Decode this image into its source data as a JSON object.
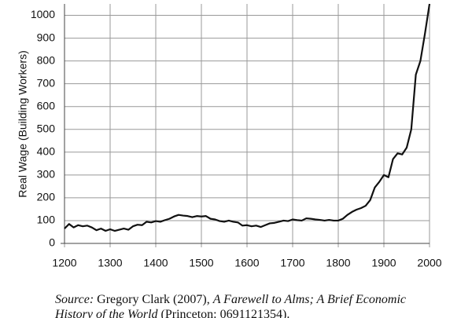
{
  "chart_data": {
    "type": "line",
    "y_label": "Real Wage (Building Workers)",
    "x": [
      1200,
      1210,
      1220,
      1230,
      1240,
      1250,
      1260,
      1270,
      1280,
      1290,
      1300,
      1310,
      1320,
      1330,
      1340,
      1350,
      1360,
      1370,
      1380,
      1390,
      1400,
      1410,
      1420,
      1430,
      1440,
      1450,
      1460,
      1470,
      1480,
      1490,
      1500,
      1510,
      1520,
      1530,
      1540,
      1550,
      1560,
      1570,
      1580,
      1590,
      1600,
      1610,
      1620,
      1630,
      1640,
      1650,
      1660,
      1670,
      1680,
      1690,
      1700,
      1710,
      1720,
      1730,
      1740,
      1750,
      1760,
      1770,
      1780,
      1790,
      1800,
      1810,
      1820,
      1830,
      1840,
      1850,
      1860,
      1870,
      1880,
      1890,
      1900,
      1910,
      1920,
      1930,
      1940,
      1950,
      1960,
      1970,
      1980,
      1990,
      2000
    ],
    "values": [
      65,
      85,
      70,
      80,
      75,
      78,
      70,
      58,
      65,
      55,
      62,
      55,
      60,
      65,
      60,
      75,
      82,
      80,
      95,
      92,
      98,
      95,
      102,
      108,
      118,
      125,
      122,
      120,
      115,
      120,
      118,
      120,
      108,
      105,
      98,
      95,
      100,
      95,
      92,
      78,
      80,
      75,
      78,
      72,
      80,
      88,
      90,
      95,
      100,
      98,
      105,
      102,
      100,
      110,
      108,
      105,
      103,
      100,
      103,
      100,
      100,
      108,
      125,
      138,
      148,
      155,
      165,
      190,
      245,
      270,
      300,
      290,
      370,
      395,
      390,
      420,
      500,
      740,
      800,
      920,
      1050
    ],
    "color": "#111111",
    "xlim": [
      1200,
      2000
    ],
    "xticks": [
      1200,
      1300,
      1400,
      1500,
      1600,
      1700,
      1800,
      1900,
      2000
    ],
    "ylim": [
      0,
      1050
    ],
    "yticks": [
      0,
      100,
      200,
      300,
      400,
      500,
      600,
      700,
      800,
      900,
      1000
    ],
    "grid": true,
    "caption": {
      "source_label": "Source:",
      "author": "Gregory Clark (2007),",
      "title_line1": "A Farewell to Alms; A Brief Economic",
      "title_line2": "History of the World",
      "publisher": "(Princeton: 0691121354)."
    }
  }
}
